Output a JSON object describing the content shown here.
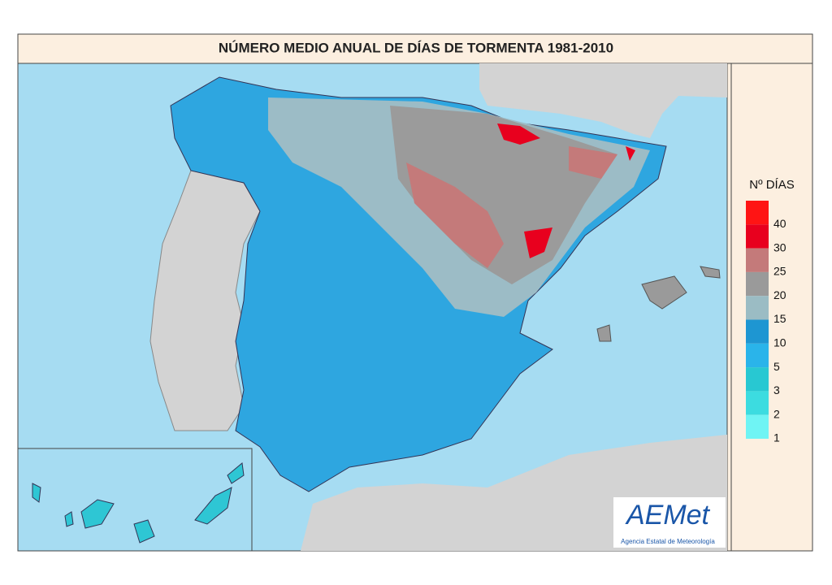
{
  "title": "NÚMERO MEDIO ANUAL DE DÍAS DE TORMENTA 1981-2010",
  "legend": {
    "title": "Nº DÍAS",
    "items": [
      {
        "value": 40,
        "color": "#ff1414"
      },
      {
        "value": 30,
        "color": "#e8001e"
      },
      {
        "value": 25,
        "color": "#c47a7a"
      },
      {
        "value": 20,
        "color": "#9a9a9a"
      },
      {
        "value": 15,
        "color": "#9bbcc4"
      },
      {
        "value": 10,
        "color": "#1e96d2"
      },
      {
        "value": 5,
        "color": "#2ab4ea"
      },
      {
        "value": 3,
        "color": "#28c8d2"
      },
      {
        "value": 2,
        "color": "#3cdce0"
      },
      {
        "value": 1,
        "color": "#6ff4f4"
      }
    ]
  },
  "logo": {
    "name": "AEMet",
    "subtitle": "Agencia Estatal de Meteorología"
  }
}
